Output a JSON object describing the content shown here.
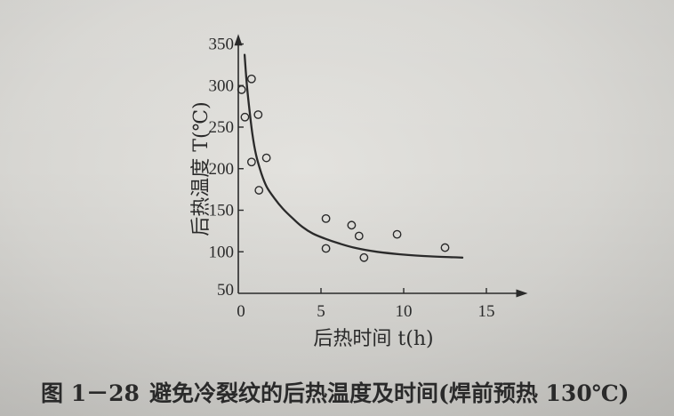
{
  "colors": {
    "paper": "#d8d7d3",
    "ink": "#2a2a2a"
  },
  "chart_data": {
    "type": "scatter",
    "xlabel": "后热时间 t(h)",
    "ylabel": "后热温度 T(℃)",
    "xlim": [
      0,
      17.5
    ],
    "ylim": [
      50,
      362
    ],
    "x_ticks": [
      0,
      5,
      10,
      15
    ],
    "y_ticks": [
      50,
      100,
      150,
      200,
      250,
      300,
      350
    ],
    "grid": false,
    "legend": "none",
    "series": [
      {
        "kind": "scatter",
        "points": [
          [
            0.2,
            295
          ],
          [
            0.8,
            308
          ],
          [
            0.4,
            262
          ],
          [
            1.2,
            265
          ],
          [
            0.8,
            208
          ],
          [
            1.7,
            213
          ],
          [
            1.25,
            174
          ],
          [
            5.3,
            140
          ],
          [
            5.3,
            104
          ],
          [
            6.85,
            132
          ],
          [
            7.3,
            119
          ],
          [
            7.6,
            93
          ],
          [
            9.6,
            121
          ],
          [
            12.5,
            105
          ]
        ]
      },
      {
        "kind": "line",
        "points": [
          [
            0.38,
            337
          ],
          [
            0.5,
            305
          ],
          [
            0.65,
            275
          ],
          [
            0.85,
            242
          ],
          [
            1.08,
            216
          ],
          [
            1.4,
            194
          ],
          [
            1.72,
            178
          ],
          [
            2.2,
            164
          ],
          [
            2.69,
            152
          ],
          [
            3.3,
            140
          ],
          [
            3.87,
            130
          ],
          [
            4.5,
            122
          ],
          [
            5.22,
            116
          ],
          [
            6.1,
            110
          ],
          [
            7.1,
            104.5
          ],
          [
            8.4,
            100
          ],
          [
            9.78,
            97
          ],
          [
            11.6,
            94.5
          ],
          [
            13.55,
            93
          ]
        ]
      }
    ]
  },
  "caption": {
    "number": "图 1－28",
    "text": "避免冷裂纹的后热温度及时间(焊前预热 130℃)"
  }
}
